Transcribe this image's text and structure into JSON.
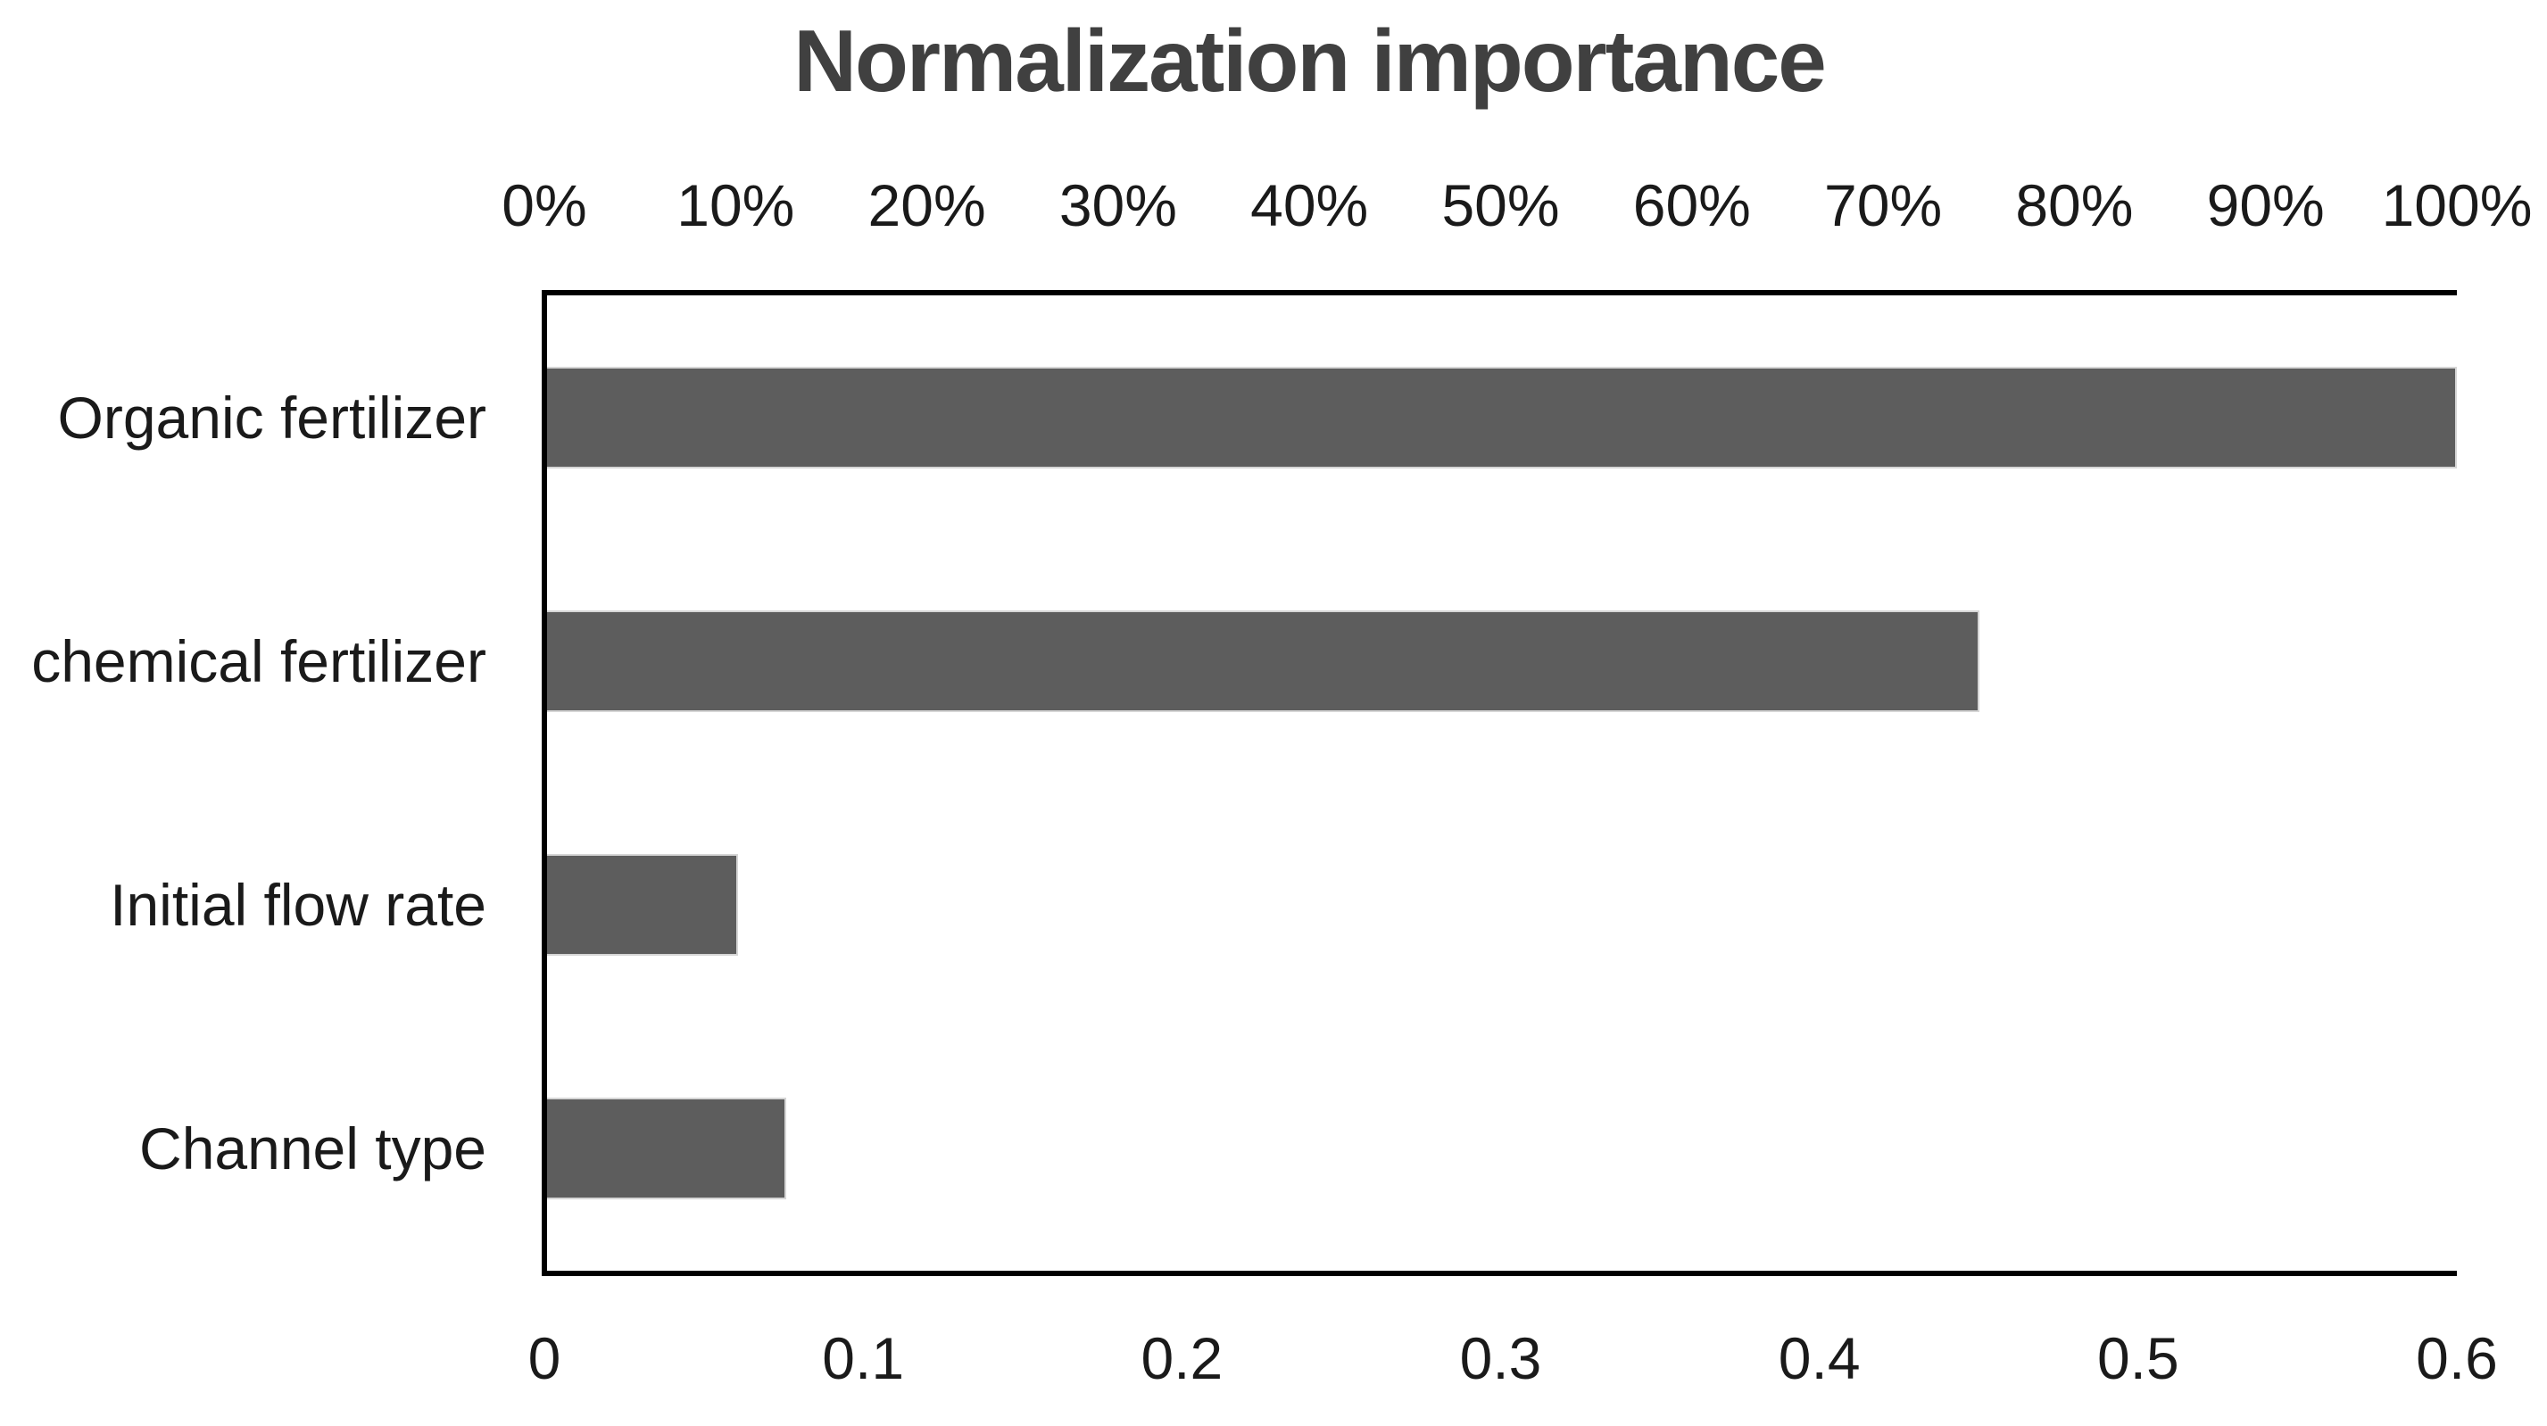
{
  "chart_data": {
    "type": "bar",
    "orientation": "horizontal",
    "title": "Normalization importance",
    "categories": [
      "Organic fertilizer",
      "chemical fertilizer",
      "Initial flow rate",
      "Channel type"
    ],
    "values": [
      0.6,
      0.45,
      0.06,
      0.075
    ],
    "xlim": [
      0,
      0.6
    ],
    "top_axis": {
      "tick_labels": [
        "0%",
        "10%",
        "20%",
        "30%",
        "40%",
        "50%",
        "60%",
        "70%",
        "80%",
        "90%",
        "100%"
      ]
    },
    "bottom_axis": {
      "tick_labels": [
        "0",
        "0.1",
        "0.2",
        "0.3",
        "0.4",
        "0.5",
        "0.6"
      ]
    },
    "grid": false,
    "legend": false,
    "colors": {
      "bar_fill": "#5d5d5d",
      "bar_edge": "#d6d6d6",
      "title_text": "#404040",
      "tick_text": "#1a1a1a",
      "axis_line": "#000000",
      "background": "#ffffff"
    }
  }
}
